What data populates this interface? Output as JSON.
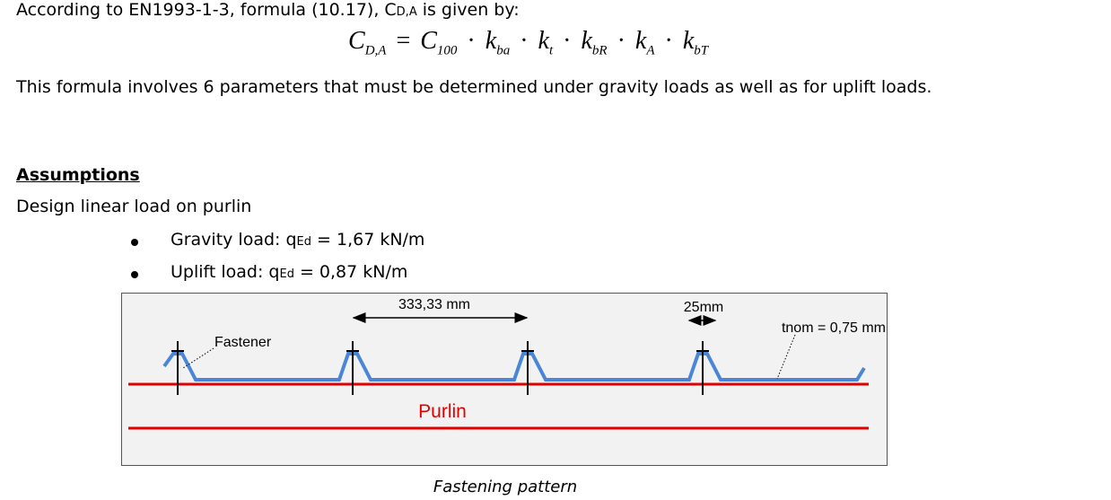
{
  "intro": {
    "text": "According to EN1993-1-3, formula (10.17), C",
    "sub": "D,A",
    "after": "is given by:"
  },
  "formula": {
    "terms": [
      {
        "symbol": "C",
        "sub": "D,A"
      },
      {
        "symbol": "C",
        "sub": "100"
      },
      {
        "symbol": "k",
        "sub": "ba"
      },
      {
        "symbol": "k",
        "sub": "t"
      },
      {
        "symbol": "k",
        "sub": "bR"
      },
      {
        "symbol": "k",
        "sub": "A"
      },
      {
        "symbol": "k",
        "sub": "bT"
      }
    ],
    "equals": "=",
    "dot": "·"
  },
  "paragraph": "This formula involves 6 parameters that must be determined under gravity loads as well as for uplift loads.",
  "heading": "Assumptions",
  "subheading": "Design linear load on purlin",
  "bullets": [
    {
      "label": "Gravity load: q",
      "sub": "Ed",
      "value": "= 1,67 kN/m"
    },
    {
      "label": "Uplift load: q",
      "sub": "Ed",
      "value": "= 0,87 kN/m"
    }
  ],
  "figure": {
    "span": "333,33 mm",
    "edge": "25mm",
    "thickness": "tnom = 0,75 mm",
    "fastener": "Fastener",
    "purlin": "Purlin",
    "caption": "Fastening pattern"
  }
}
